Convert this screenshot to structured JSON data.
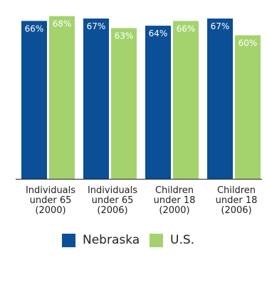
{
  "chart_data": {
    "type": "bar",
    "categories": [
      "Individuals\nunder 65\n(2000)",
      "Individuals\nunder 65\n(2006)",
      "Children\nunder 18\n(2000)",
      "Children\nunder 18\n(2006)"
    ],
    "series": [
      {
        "name": "Nebraska",
        "color": "#0b4f96",
        "values": [
          66,
          67,
          64,
          67
        ],
        "labels": [
          "66%",
          "67%",
          "64%",
          "67%"
        ]
      },
      {
        "name": "U.S.",
        "color": "#a4d36e",
        "values": [
          68,
          63,
          66,
          60
        ],
        "labels": [
          "68%",
          "63%",
          "66%",
          "60%"
        ]
      }
    ],
    "ylim": [
      0,
      70
    ],
    "grid": false,
    "legend_position": "bottom"
  }
}
